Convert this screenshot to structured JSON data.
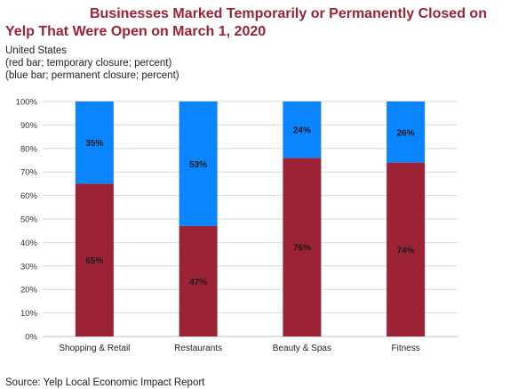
{
  "header": {
    "title_line1": "Businesses Marked Temporarily or Permanently Closed on",
    "title_line2": "Yelp That Were Open on March 1, 2020",
    "subtitle_lines": [
      "United States",
      "(red bar; temporary closure; percent)",
      "(blue bar; permanent closure; percent)"
    ]
  },
  "footer": {
    "source": "Source: Yelp Local Economic Impact Report"
  },
  "colors": {
    "temporary": "#9b2335",
    "permanent": "#0a84ff",
    "grid": "#d9d9d9"
  },
  "chart_data": {
    "type": "bar",
    "stacked": true,
    "categories": [
      "Shopping & Retail",
      "Restaurants",
      "Beauty & Spas",
      "Fitness"
    ],
    "series": [
      {
        "name": "temporary closure",
        "values": [
          65,
          47,
          76,
          74
        ],
        "labels": [
          "65%",
          "47%",
          "76%",
          "74%"
        ]
      },
      {
        "name": "permanent closure",
        "values": [
          35,
          53,
          24,
          26
        ],
        "labels": [
          "35%",
          "53%",
          "24%",
          "26%"
        ]
      }
    ],
    "ylim": [
      0,
      100
    ],
    "yticks": [
      0,
      10,
      20,
      30,
      40,
      50,
      60,
      70,
      80,
      90,
      100
    ],
    "ytick_labels": [
      "0%",
      "10%",
      "20%",
      "30%",
      "40%",
      "50%",
      "60%",
      "70%",
      "80%",
      "90%",
      "100%"
    ],
    "grid": true,
    "legend": "none"
  }
}
